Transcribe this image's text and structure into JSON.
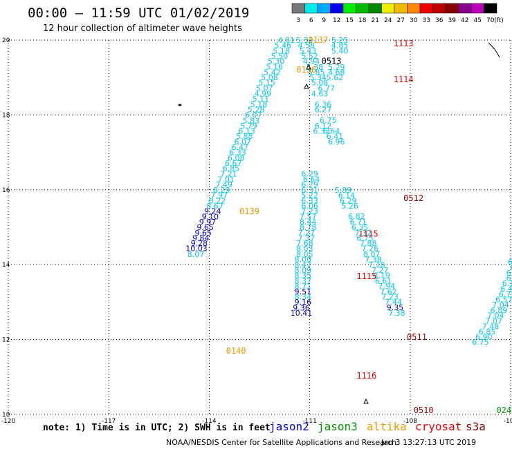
{
  "header": {
    "title": "00:00 – 11:59 UTC 01/02/2019",
    "subtitle": "12 hour collection of altimeter wave heights"
  },
  "colorbar": {
    "unit": "(ft)",
    "levels": [
      {
        "label": "3",
        "color": "#777777"
      },
      {
        "label": "6",
        "color": "#00eaea"
      },
      {
        "label": "9",
        "color": "#00aaff"
      },
      {
        "label": "12",
        "color": "#0000ee"
      },
      {
        "label": "15",
        "color": "#00ee00"
      },
      {
        "label": "18",
        "color": "#00bb00"
      },
      {
        "label": "21",
        "color": "#008800"
      },
      {
        "label": "24",
        "color": "#eeee00"
      },
      {
        "label": "27",
        "color": "#eebb00"
      },
      {
        "label": "30",
        "color": "#ff8800"
      },
      {
        "label": "33",
        "color": "#ee0000"
      },
      {
        "label": "36",
        "color": "#bb0000"
      },
      {
        "label": "39",
        "color": "#880000"
      },
      {
        "label": "42",
        "color": "#880088"
      },
      {
        "label": "45",
        "color": "#bb00bb"
      },
      {
        "label": "70",
        "color": "#000000"
      }
    ]
  },
  "axes": {
    "lon_labels": [
      "-120",
      "-117",
      "-114",
      "-111",
      "-108",
      "-105"
    ],
    "lat_labels": [
      "20",
      "18",
      "16",
      "14",
      "12",
      "10"
    ],
    "lon_values": [
      -120,
      -117,
      -114,
      -111,
      -108,
      -105
    ],
    "lat_values": [
      20,
      18,
      16,
      14,
      12,
      10
    ],
    "lon_range": [
      -120,
      -105
    ],
    "lat_range": [
      10,
      20
    ]
  },
  "colors": {
    "cyan": "#00c8ee",
    "blue": "#0000cc",
    "orange": "#ee9900",
    "red": "#ee0000",
    "darkred": "#990000",
    "green": "#009900",
    "black": "#000000"
  },
  "time_labels": [
    {
      "text": "0137",
      "lon": -110.75,
      "lat": 19.93,
      "color": "orange"
    },
    {
      "text": "1113",
      "lon": -108.2,
      "lat": 19.83,
      "color": "red"
    },
    {
      "text": "0513",
      "lon": -110.35,
      "lat": 19.36,
      "color": "black"
    },
    {
      "text": "0138",
      "lon": -111.1,
      "lat": 19.13,
      "color": "orange"
    },
    {
      "text": "1114",
      "lon": -108.2,
      "lat": 18.87,
      "color": "red"
    },
    {
      "text": "0512",
      "lon": -107.9,
      "lat": 15.7,
      "color": "darkred"
    },
    {
      "text": "0139",
      "lon": -112.8,
      "lat": 15.35,
      "color": "orange"
    },
    {
      "text": "1115",
      "lon": -109.25,
      "lat": 14.75,
      "color": "red"
    },
    {
      "text": "1115",
      "lon": -109.3,
      "lat": 13.62,
      "color": "red"
    },
    {
      "text": "0511",
      "lon": -107.8,
      "lat": 11.99,
      "color": "darkred"
    },
    {
      "text": "0140",
      "lon": -113.2,
      "lat": 11.62,
      "color": "orange"
    },
    {
      "text": "1116",
      "lon": -109.3,
      "lat": 10.96,
      "color": "red"
    },
    {
      "text": "0510",
      "lon": -107.6,
      "lat": 10.04,
      "color": "darkred"
    },
    {
      "text": "024",
      "lon": -105.2,
      "lat": 10.04,
      "color": "green"
    }
  ],
  "tracks": [
    {
      "name": "altika-track",
      "points": [
        {
          "v": "4.81",
          "lon": -111.7,
          "lat": 19.93,
          "c": "cyan"
        },
        {
          "v": "5.46",
          "lon": -111.8,
          "lat": 19.79,
          "c": "cyan"
        },
        {
          "v": "5.18",
          "lon": -111.85,
          "lat": 19.64,
          "c": "cyan"
        },
        {
          "v": "5.50",
          "lon": -111.9,
          "lat": 19.5,
          "c": "cyan"
        },
        {
          "v": "5.30",
          "lon": -112.0,
          "lat": 19.36,
          "c": "cyan"
        },
        {
          "v": "5.16",
          "lon": -112.05,
          "lat": 19.22,
          "c": "cyan"
        },
        {
          "v": "5.42",
          "lon": -112.12,
          "lat": 19.07,
          "c": "cyan"
        },
        {
          "v": "5.08",
          "lon": -112.2,
          "lat": 18.93,
          "c": "cyan"
        },
        {
          "v": "5.15",
          "lon": -112.28,
          "lat": 18.79,
          "c": "cyan"
        },
        {
          "v": "5.07",
          "lon": -112.35,
          "lat": 18.64,
          "c": "cyan"
        },
        {
          "v": "4.99",
          "lon": -112.4,
          "lat": 18.5,
          "c": "cyan"
        },
        {
          "v": "5.11",
          "lon": -112.46,
          "lat": 18.36,
          "c": "cyan"
        },
        {
          "v": "5.18",
          "lon": -112.52,
          "lat": 18.21,
          "c": "cyan"
        },
        {
          "v": "5.28",
          "lon": -112.6,
          "lat": 18.07,
          "c": "cyan"
        },
        {
          "v": "6.07",
          "lon": -112.68,
          "lat": 17.93,
          "c": "cyan"
        },
        {
          "v": "5.83",
          "lon": -112.75,
          "lat": 17.78,
          "c": "cyan"
        },
        {
          "v": "5.79",
          "lon": -112.82,
          "lat": 17.64,
          "c": "cyan"
        },
        {
          "v": "6.13",
          "lon": -112.88,
          "lat": 17.5,
          "c": "cyan"
        },
        {
          "v": "5.88",
          "lon": -112.95,
          "lat": 17.36,
          "c": "cyan"
        },
        {
          "v": "6.07",
          "lon": -113.0,
          "lat": 17.21,
          "c": "cyan"
        },
        {
          "v": "6.47",
          "lon": -113.08,
          "lat": 17.07,
          "c": "cyan"
        },
        {
          "v": "6.33",
          "lon": -113.15,
          "lat": 16.93,
          "c": "cyan"
        },
        {
          "v": "6.08",
          "lon": -113.2,
          "lat": 16.78,
          "c": "cyan"
        },
        {
          "v": "6.67",
          "lon": -113.28,
          "lat": 16.64,
          "c": "cyan"
        },
        {
          "v": "6.85",
          "lon": -113.35,
          "lat": 16.5,
          "c": "cyan"
        },
        {
          "v": "7.21",
          "lon": -113.42,
          "lat": 16.36,
          "c": "cyan"
        },
        {
          "v": "7.01",
          "lon": -113.5,
          "lat": 16.21,
          "c": "cyan"
        },
        {
          "v": "7.49",
          "lon": -113.56,
          "lat": 16.07,
          "c": "cyan"
        },
        {
          "v": "8.29",
          "lon": -113.63,
          "lat": 15.92,
          "c": "cyan"
        },
        {
          "v": "7.97",
          "lon": -113.7,
          "lat": 15.78,
          "c": "cyan"
        },
        {
          "v": "8.22",
          "lon": -113.76,
          "lat": 15.64,
          "c": "cyan"
        },
        {
          "v": "8.67",
          "lon": -113.83,
          "lat": 15.5,
          "c": "cyan"
        },
        {
          "v": "9.24",
          "lon": -113.9,
          "lat": 15.36,
          "c": "blue"
        },
        {
          "v": "9.10",
          "lon": -113.97,
          "lat": 15.21,
          "c": "blue"
        },
        {
          "v": "9.97",
          "lon": -114.05,
          "lat": 15.07,
          "c": "blue"
        },
        {
          "v": "9.65",
          "lon": -114.12,
          "lat": 14.93,
          "c": "blue"
        },
        {
          "v": "9.65",
          "lon": -114.18,
          "lat": 14.78,
          "c": "blue"
        },
        {
          "v": "9.84",
          "lon": -114.25,
          "lat": 14.64,
          "c": "blue"
        },
        {
          "v": "9.28",
          "lon": -114.3,
          "lat": 14.5,
          "c": "blue"
        },
        {
          "v": "10.03",
          "lon": -114.38,
          "lat": 14.36,
          "c": "blue"
        },
        {
          "v": "8.07",
          "lon": -114.4,
          "lat": 14.21,
          "c": "cyan"
        }
      ]
    },
    {
      "name": "jason3-descending-track",
      "points": [
        {
          "v": "5.25",
          "lon": -110.1,
          "lat": 19.93,
          "c": "cyan"
        },
        {
          "v": "4.85",
          "lon": -110.1,
          "lat": 19.79,
          "c": "cyan"
        },
        {
          "v": "5.40",
          "lon": -110.1,
          "lat": 19.64,
          "c": "cyan"
        },
        {
          "v": "5.29",
          "lon": -110.2,
          "lat": 19.21,
          "c": "cyan"
        },
        {
          "v": "4.68",
          "lon": -110.2,
          "lat": 19.07,
          "c": "cyan"
        },
        {
          "v": "5.62",
          "lon": -110.25,
          "lat": 18.93,
          "c": "cyan"
        },
        {
          "v": "6.29",
          "lon": -111.0,
          "lat": 16.36,
          "c": "cyan"
        },
        {
          "v": "6.64",
          "lon": -110.95,
          "lat": 16.21,
          "c": "cyan"
        },
        {
          "v": "6.79",
          "lon": -111.0,
          "lat": 16.07,
          "c": "cyan"
        },
        {
          "v": "6.31",
          "lon": -111.0,
          "lat": 15.92,
          "c": "cyan"
        },
        {
          "v": "5.22",
          "lon": -111.0,
          "lat": 15.78,
          "c": "cyan"
        },
        {
          "v": "6.33",
          "lon": -111.0,
          "lat": 15.64,
          "c": "cyan"
        },
        {
          "v": "6.06",
          "lon": -111.0,
          "lat": 15.5,
          "c": "cyan"
        },
        {
          "v": "7.23",
          "lon": -111.0,
          "lat": 15.36,
          "c": "cyan"
        },
        {
          "v": "7.57",
          "lon": -111.05,
          "lat": 15.21,
          "c": "cyan"
        },
        {
          "v": "8.44",
          "lon": -111.05,
          "lat": 15.07,
          "c": "cyan"
        },
        {
          "v": "8.78",
          "lon": -111.05,
          "lat": 14.93,
          "c": "cyan"
        },
        {
          "v": "7.27",
          "lon": -111.1,
          "lat": 14.78,
          "c": "cyan"
        },
        {
          "v": "7.37",
          "lon": -111.1,
          "lat": 14.64,
          "c": "cyan"
        },
        {
          "v": "7.68",
          "lon": -111.15,
          "lat": 14.5,
          "c": "cyan"
        },
        {
          "v": "8.03",
          "lon": -111.15,
          "lat": 14.36,
          "c": "cyan"
        },
        {
          "v": "8.05",
          "lon": -111.15,
          "lat": 14.21,
          "c": "cyan"
        },
        {
          "v": "8.00",
          "lon": -111.2,
          "lat": 14.07,
          "c": "cyan"
        },
        {
          "v": "8.47",
          "lon": -111.2,
          "lat": 13.92,
          "c": "cyan"
        },
        {
          "v": "8.09",
          "lon": -111.2,
          "lat": 13.78,
          "c": "cyan"
        },
        {
          "v": "8.35",
          "lon": -111.2,
          "lat": 13.64,
          "c": "cyan"
        },
        {
          "v": "8.37",
          "lon": -111.2,
          "lat": 13.5,
          "c": "cyan"
        },
        {
          "v": "8.71",
          "lon": -111.2,
          "lat": 13.36,
          "c": "cyan"
        },
        {
          "v": "9.51",
          "lon": -111.2,
          "lat": 13.21,
          "c": "blue"
        },
        {
          "v": "8.34",
          "lon": -111.2,
          "lat": 13.07,
          "c": "cyan"
        },
        {
          "v": "9.16",
          "lon": -111.2,
          "lat": 12.93,
          "c": "blue"
        },
        {
          "v": "9.36",
          "lon": -111.25,
          "lat": 12.78,
          "c": "blue"
        },
        {
          "v": "10.41",
          "lon": -111.25,
          "lat": 12.64,
          "c": "blue"
        }
      ]
    },
    {
      "name": "cryosat-track",
      "points": [
        {
          "v": "5.89",
          "lon": -110.0,
          "lat": 15.92,
          "c": "cyan"
        },
        {
          "v": "6.14",
          "lon": -109.9,
          "lat": 15.78,
          "c": "cyan"
        },
        {
          "v": "6.29",
          "lon": -109.85,
          "lat": 15.64,
          "c": "cyan"
        },
        {
          "v": "5.26",
          "lon": -109.8,
          "lat": 15.5,
          "c": "cyan"
        },
        {
          "v": "6.82",
          "lon": -109.6,
          "lat": 15.22,
          "c": "cyan"
        },
        {
          "v": "6.71",
          "lon": -109.55,
          "lat": 15.07,
          "c": "cyan"
        },
        {
          "v": "6.35",
          "lon": -109.5,
          "lat": 14.93,
          "c": "cyan"
        },
        {
          "v": "7.32",
          "lon": -109.4,
          "lat": 14.78,
          "c": "cyan"
        },
        {
          "v": "6.75",
          "lon": -109.35,
          "lat": 14.64,
          "c": "cyan"
        },
        {
          "v": "7.88",
          "lon": -109.25,
          "lat": 14.5,
          "c": "cyan"
        },
        {
          "v": "7.26",
          "lon": -109.2,
          "lat": 14.36,
          "c": "cyan"
        },
        {
          "v": "8.07",
          "lon": -109.15,
          "lat": 14.21,
          "c": "cyan"
        },
        {
          "v": "7.38",
          "lon": -109.1,
          "lat": 14.07,
          "c": "cyan"
        },
        {
          "v": "7.18",
          "lon": -109.0,
          "lat": 13.93,
          "c": "cyan"
        },
        {
          "v": "7.27",
          "lon": -108.9,
          "lat": 13.78,
          "c": "cyan"
        },
        {
          "v": "8.19",
          "lon": -108.85,
          "lat": 13.64,
          "c": "cyan"
        },
        {
          "v": "6.61",
          "lon": -108.8,
          "lat": 13.5,
          "c": "cyan"
        },
        {
          "v": "7.94",
          "lon": -108.7,
          "lat": 13.36,
          "c": "cyan"
        },
        {
          "v": "7.62",
          "lon": -108.65,
          "lat": 13.21,
          "c": "cyan"
        },
        {
          "v": "7.23",
          "lon": -108.6,
          "lat": 13.07,
          "c": "cyan"
        },
        {
          "v": "7.44",
          "lon": -108.5,
          "lat": 12.93,
          "c": "cyan"
        },
        {
          "v": "9.35",
          "lon": -108.45,
          "lat": 12.79,
          "c": "blue"
        },
        {
          "v": "7.38",
          "lon": -108.4,
          "lat": 12.64,
          "c": "cyan"
        }
      ]
    },
    {
      "name": "jason2-track",
      "points": [
        {
          "v": "6.1",
          "lon": -104.9,
          "lat": 14.0,
          "c": "cyan"
        },
        {
          "v": "6.",
          "lon": -104.9,
          "lat": 13.86,
          "c": "cyan"
        },
        {
          "v": "6.4",
          "lon": -104.95,
          "lat": 13.71,
          "c": "cyan"
        },
        {
          "v": "6.5",
          "lon": -104.95,
          "lat": 13.57,
          "c": "cyan"
        },
        {
          "v": "6.18",
          "lon": -105.0,
          "lat": 13.43,
          "c": "cyan"
        },
        {
          "v": "6.49",
          "lon": -105.05,
          "lat": 13.28,
          "c": "cyan"
        },
        {
          "v": "6.75",
          "lon": -105.1,
          "lat": 13.14,
          "c": "cyan"
        },
        {
          "v": "6.57",
          "lon": -105.2,
          "lat": 13.0,
          "c": "cyan"
        },
        {
          "v": "7.04",
          "lon": -105.3,
          "lat": 12.86,
          "c": "cyan"
        },
        {
          "v": "6.89",
          "lon": -105.35,
          "lat": 12.71,
          "c": "cyan"
        },
        {
          "v": "7.04",
          "lon": -105.45,
          "lat": 12.57,
          "c": "cyan"
        },
        {
          "v": "7.07",
          "lon": -105.5,
          "lat": 12.43,
          "c": "cyan"
        },
        {
          "v": "7.48",
          "lon": -105.6,
          "lat": 12.28,
          "c": "cyan"
        },
        {
          "v": "6.85",
          "lon": -105.7,
          "lat": 12.14,
          "c": "cyan"
        },
        {
          "v": "6.90",
          "lon": -105.8,
          "lat": 12.0,
          "c": "cyan"
        },
        {
          "v": "6.75",
          "lon": -105.9,
          "lat": 11.86,
          "c": "cyan"
        }
      ]
    },
    {
      "name": "jason3-upper-track",
      "points": [
        {
          "v": "5.32",
          "lon": -111.15,
          "lat": 19.93,
          "c": "cyan"
        },
        {
          "v": "4.58",
          "lon": -111.1,
          "lat": 19.79,
          "c": "cyan"
        },
        {
          "v": "5.43",
          "lon": -111.05,
          "lat": 19.64,
          "c": "cyan"
        },
        {
          "v": "5.52",
          "lon": -111.0,
          "lat": 19.5,
          "c": "cyan"
        },
        {
          "v": "4.94",
          "lon": -110.95,
          "lat": 19.36,
          "c": "cyan"
        },
        {
          "v": "5.38",
          "lon": -110.85,
          "lat": 19.21,
          "c": "cyan"
        },
        {
          "v": "5.85",
          "lon": -110.8,
          "lat": 19.07,
          "c": "cyan"
        },
        {
          "v": "5.34",
          "lon": -110.75,
          "lat": 18.93,
          "c": "cyan"
        },
        {
          "v": "5.08",
          "lon": -110.7,
          "lat": 18.79,
          "c": "cyan"
        },
        {
          "v": "6.77",
          "lon": -110.5,
          "lat": 18.64,
          "c": "cyan"
        },
        {
          "v": "4.63",
          "lon": -110.7,
          "lat": 18.5,
          "c": "cyan"
        },
        {
          "v": "6.36",
          "lon": -110.6,
          "lat": 18.21,
          "c": "cyan"
        },
        {
          "v": "6.27",
          "lon": -110.6,
          "lat": 18.07,
          "c": "cyan"
        },
        {
          "v": "6.75",
          "lon": -110.45,
          "lat": 17.79,
          "c": "cyan"
        },
        {
          "v": "6.12",
          "lon": -110.6,
          "lat": 17.64,
          "c": "cyan"
        },
        {
          "v": "6.33",
          "lon": -110.65,
          "lat": 17.5,
          "c": "cyan"
        },
        {
          "v": "6.64",
          "lon": -110.35,
          "lat": 17.5,
          "c": "cyan"
        },
        {
          "v": "6.41",
          "lon": -110.25,
          "lat": 17.36,
          "c": "cyan"
        },
        {
          "v": "6.96",
          "lon": -110.2,
          "lat": 17.21,
          "c": "cyan"
        }
      ]
    }
  ],
  "footer": {
    "note": "note: 1) Time is in UTC; 2) SWH is in feet",
    "satellites": [
      {
        "label": "jason2",
        "color": "#0000dd"
      },
      {
        "label": "jason3",
        "color": "#009900"
      },
      {
        "label": "altika",
        "color": "#ee9900"
      },
      {
        "label": "cryosat",
        "color": "#ee0000"
      },
      {
        "label": "s3a",
        "color": "#880000"
      }
    ],
    "credit": "NOAA/NESDIS Center for Satellite Applications and Research",
    "generated": "Jan  3 13:27:13 UTC 2019"
  }
}
